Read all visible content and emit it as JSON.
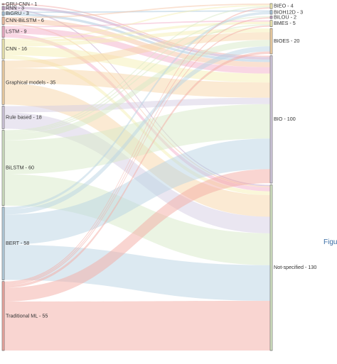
{
  "chart_data": {
    "type": "sankey",
    "sources": [
      {
        "label": "GRU-CNN - 1",
        "color": "#f4a9a8"
      },
      {
        "label": "RNN - 3",
        "color": "#c2a2c7"
      },
      {
        "label": "BiGRU - 3",
        "color": "#a9c7de"
      },
      {
        "label": "CNN-BiLSTM - 6",
        "color": "#f6c4a4"
      },
      {
        "label": "LSTM - 9",
        "color": "#f3b0c9"
      },
      {
        "label": "CNN - 16",
        "color": "#f6efb4"
      },
      {
        "label": "Graphical models - 35",
        "color": "#f8d6a8"
      },
      {
        "label": "Rule based - 18",
        "color": "#d6cde3"
      },
      {
        "label": "BiLSTM - 60",
        "color": "#d7e9c7"
      },
      {
        "label": "BERT - 58",
        "color": "#b9d4e4"
      },
      {
        "label": "Traditional ML - 55",
        "color": "#f4aba3"
      }
    ],
    "targets": [
      {
        "label": "BIEO - 4",
        "color": "#f6efb4"
      },
      {
        "label": "BIOH12D - 3",
        "color": "#a9c7de"
      },
      {
        "label": "BILOU - 2",
        "color": "#c2a2c7"
      },
      {
        "label": "BMES - 5",
        "color": "#f6efb4"
      },
      {
        "label": "BIOES - 20",
        "color": "#f8d6a8"
      },
      {
        "label": "BIO - 100",
        "color": "#d6cde3"
      },
      {
        "label": "Not-specified - 130",
        "color": "#d7e9c7"
      }
    ],
    "links": [
      {
        "source": 0,
        "target": 5,
        "value": 1
      },
      {
        "source": 1,
        "target": 5,
        "value": 2
      },
      {
        "source": 1,
        "target": 6,
        "value": 1
      },
      {
        "source": 2,
        "target": 1,
        "value": 1
      },
      {
        "source": 2,
        "target": 5,
        "value": 2
      },
      {
        "source": 3,
        "target": 0,
        "value": 1
      },
      {
        "source": 3,
        "target": 5,
        "value": 4
      },
      {
        "source": 3,
        "target": 6,
        "value": 1
      },
      {
        "source": 4,
        "target": 3,
        "value": 1
      },
      {
        "source": 4,
        "target": 5,
        "value": 5
      },
      {
        "source": 4,
        "target": 6,
        "value": 3
      },
      {
        "source": 5,
        "target": 0,
        "value": 1
      },
      {
        "source": 5,
        "target": 3,
        "value": 2
      },
      {
        "source": 5,
        "target": 4,
        "value": 3
      },
      {
        "source": 5,
        "target": 5,
        "value": 7
      },
      {
        "source": 5,
        "target": 6,
        "value": 3
      },
      {
        "source": 6,
        "target": 4,
        "value": 6
      },
      {
        "source": 6,
        "target": 5,
        "value": 12
      },
      {
        "source": 6,
        "target": 6,
        "value": 17
      },
      {
        "source": 7,
        "target": 5,
        "value": 5
      },
      {
        "source": 7,
        "target": 6,
        "value": 13
      },
      {
        "source": 8,
        "target": 0,
        "value": 1
      },
      {
        "source": 8,
        "target": 2,
        "value": 1
      },
      {
        "source": 8,
        "target": 3,
        "value": 1
      },
      {
        "source": 8,
        "target": 4,
        "value": 5
      },
      {
        "source": 8,
        "target": 5,
        "value": 27
      },
      {
        "source": 8,
        "target": 6,
        "value": 25
      },
      {
        "source": 9,
        "target": 1,
        "value": 2
      },
      {
        "source": 9,
        "target": 4,
        "value": 4
      },
      {
        "source": 9,
        "target": 5,
        "value": 24
      },
      {
        "source": 9,
        "target": 6,
        "value": 28
      },
      {
        "source": 10,
        "target": 0,
        "value": 1
      },
      {
        "source": 10,
        "target": 2,
        "value": 1
      },
      {
        "source": 10,
        "target": 3,
        "value": 1
      },
      {
        "source": 10,
        "target": 4,
        "value": 2
      },
      {
        "source": 10,
        "target": 5,
        "value": 11
      },
      {
        "source": 10,
        "target": 6,
        "value": 39
      }
    ]
  },
  "figure_caption": "Figu"
}
